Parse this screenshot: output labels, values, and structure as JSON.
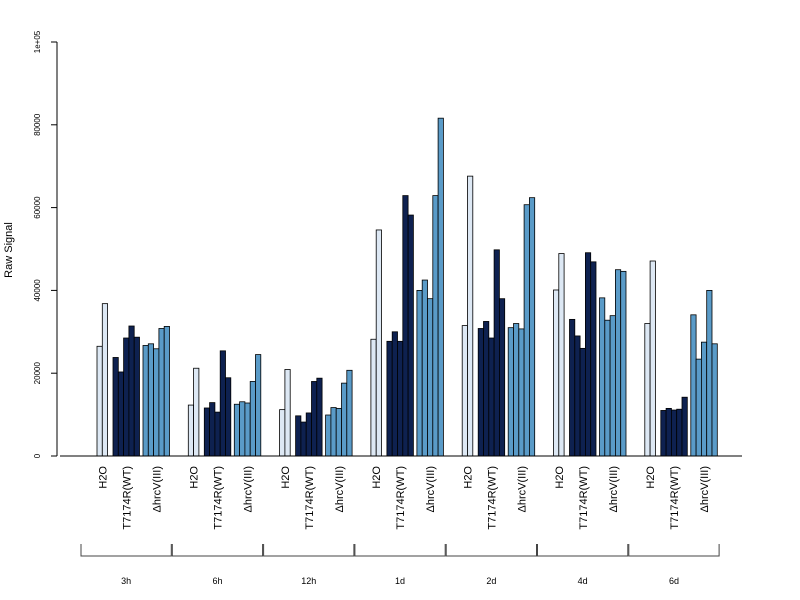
{
  "chart_data": {
    "type": "bar",
    "title": "",
    "ylabel": "Raw Signal",
    "xlabel": "",
    "ylim": [
      0,
      100000
    ],
    "y_ticks": [
      {
        "value": 0,
        "label": "0"
      },
      {
        "value": 20000,
        "label": "20000"
      },
      {
        "value": 40000,
        "label": "40000"
      },
      {
        "value": 60000,
        "label": "60000"
      },
      {
        "value": 80000,
        "label": "80000"
      },
      {
        "value": 100000,
        "label": "1e+05"
      }
    ],
    "colors": {
      "H2O": "#dde8f4",
      "T7174R(WT)": "#0e2150",
      "ΔhrcV(III)": "#5a9bc8"
    },
    "treatments": [
      "H2O",
      "T7174R(WT)",
      "ΔhrcV(III)"
    ],
    "timepoints": [
      {
        "label": "3h",
        "groups": [
          {
            "treatment": "H2O",
            "values": [
              26500,
              36800
            ]
          },
          {
            "treatment": "T7174R(WT)",
            "values": [
              23800,
              20300,
              28500,
              31400,
              28700
            ]
          },
          {
            "treatment": "ΔhrcV(III)",
            "values": [
              26700,
              27100,
              25900,
              30800,
              31300
            ]
          }
        ]
      },
      {
        "label": "6h",
        "groups": [
          {
            "treatment": "H2O",
            "values": [
              12300,
              21200
            ]
          },
          {
            "treatment": "T7174R(WT)",
            "values": [
              11600,
              12900,
              10600,
              25400,
              18900
            ]
          },
          {
            "treatment": "ΔhrcV(III)",
            "values": [
              12500,
              13100,
              12800,
              18000,
              24500
            ]
          }
        ]
      },
      {
        "label": "12h",
        "groups": [
          {
            "treatment": "H2O",
            "values": [
              11200,
              20900
            ]
          },
          {
            "treatment": "T7174R(WT)",
            "values": [
              9700,
              8200,
              10400,
              18000,
              18800
            ]
          },
          {
            "treatment": "ΔhrcV(III)",
            "values": [
              9900,
              11700,
              11500,
              17600,
              20700
            ]
          }
        ]
      },
      {
        "label": "1d",
        "groups": [
          {
            "treatment": "H2O",
            "values": [
              28200,
              54600
            ]
          },
          {
            "treatment": "T7174R(WT)",
            "values": [
              27700,
              30000,
              27700,
              62900,
              58200
            ]
          },
          {
            "treatment": "ΔhrcV(III)",
            "values": [
              40000,
              42500,
              38000,
              62900,
              81600
            ]
          }
        ]
      },
      {
        "label": "2d",
        "groups": [
          {
            "treatment": "H2O",
            "values": [
              31500,
              67600
            ]
          },
          {
            "treatment": "T7174R(WT)",
            "values": [
              30800,
              32500,
              28500,
              49800,
              38000
            ]
          },
          {
            "treatment": "ΔhrcV(III)",
            "values": [
              31000,
              32000,
              30700,
              60700,
              62400
            ]
          }
        ]
      },
      {
        "label": "4d",
        "groups": [
          {
            "treatment": "H2O",
            "values": [
              40100,
              48900
            ]
          },
          {
            "treatment": "T7174R(WT)",
            "values": [
              33000,
              29000,
              26000,
              49100,
              46900
            ]
          },
          {
            "treatment": "ΔhrcV(III)",
            "values": [
              38200,
              32800,
              33900,
              45000,
              44600
            ]
          }
        ]
      },
      {
        "label": "6d",
        "groups": [
          {
            "treatment": "H2O",
            "values": [
              32000,
              47100
            ]
          },
          {
            "treatment": "T7174R(WT)",
            "values": [
              11000,
              11500,
              11100,
              11300,
              14200
            ]
          },
          {
            "treatment": "ΔhrcV(III)",
            "values": [
              34100,
              23400,
              27500,
              40000,
              27100
            ]
          }
        ]
      }
    ],
    "grid": false,
    "legend": "none"
  }
}
